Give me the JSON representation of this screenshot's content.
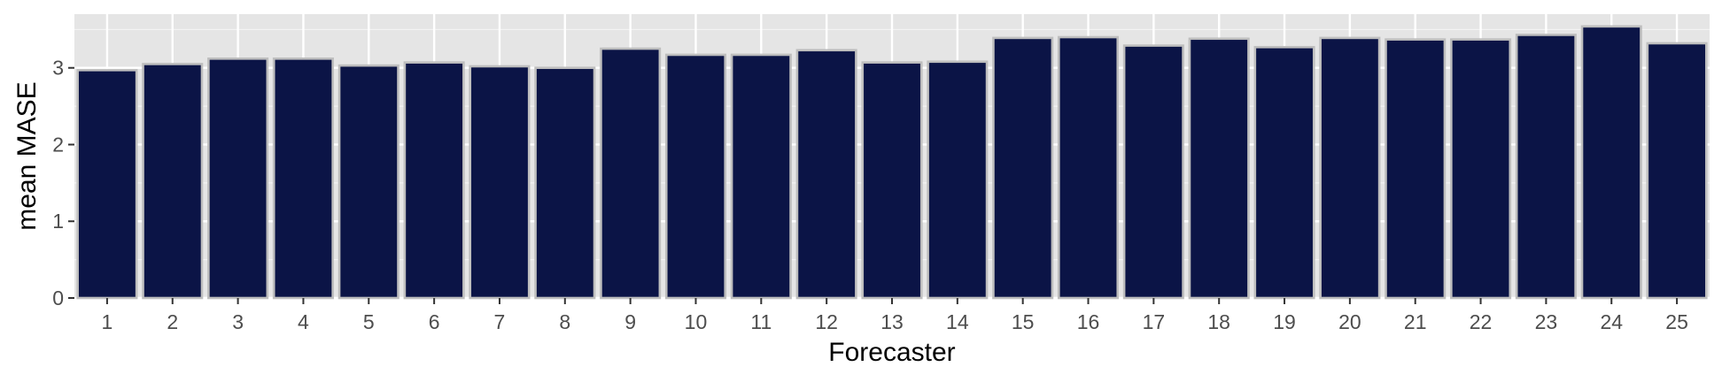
{
  "chart_data": {
    "type": "bar",
    "xlabel": "Forecaster",
    "ylabel": "mean MASE",
    "categories": [
      "1",
      "2",
      "3",
      "4",
      "5",
      "6",
      "7",
      "8",
      "9",
      "10",
      "11",
      "12",
      "13",
      "14",
      "15",
      "16",
      "17",
      "18",
      "19",
      "20",
      "21",
      "22",
      "23",
      "24",
      "25"
    ],
    "values": [
      2.97,
      3.05,
      3.12,
      3.12,
      3.03,
      3.07,
      3.02,
      3.0,
      3.25,
      3.17,
      3.17,
      3.23,
      3.07,
      3.08,
      3.39,
      3.4,
      3.29,
      3.38,
      3.27,
      3.39,
      3.37,
      3.37,
      3.43,
      3.54,
      3.32
    ],
    "ylim": [
      0,
      3.7
    ],
    "yticks": [
      0,
      1,
      2,
      3
    ],
    "grid": true,
    "colors": {
      "panel": "#e5e5e5",
      "grid_major": "#ffffff",
      "bar_fill": "#0b1446",
      "bar_stroke": "#bebebe",
      "tick": "#333333"
    }
  }
}
